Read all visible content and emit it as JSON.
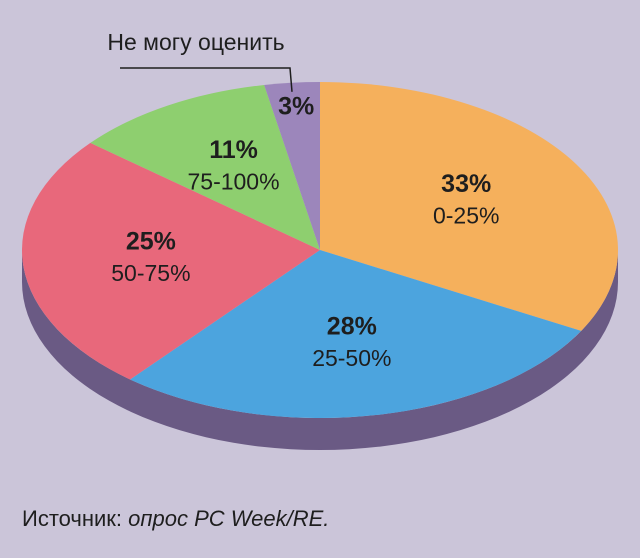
{
  "chart_data": {
    "type": "pie",
    "categories": [
      "0-25%",
      "25-50%",
      "50-75%",
      "75-100%",
      "Не могу оценить"
    ],
    "values": [
      33,
      28,
      25,
      11,
      3
    ],
    "value_labels": [
      "33%",
      "28%",
      "25%",
      "11%",
      "3%"
    ],
    "colors": [
      "#f5b05c",
      "#4ca4de",
      "#e8687b",
      "#8ecf6f",
      "#9c86bb"
    ],
    "source_label": "Источник:",
    "source": "опрос PC Week/RE."
  }
}
